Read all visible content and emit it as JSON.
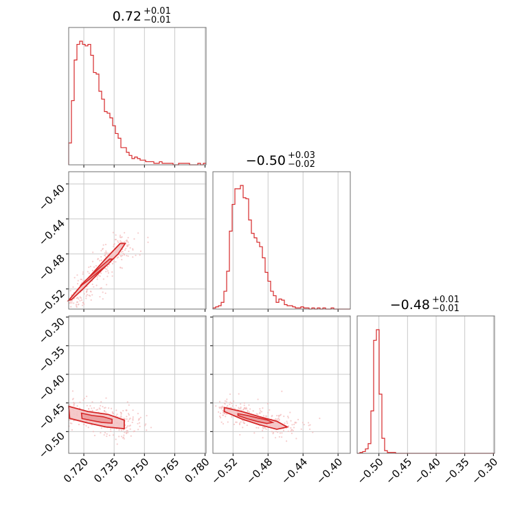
{
  "colors": {
    "accent": "#d62728",
    "fill": "#f4c3c4",
    "grid": "#c8c8c8",
    "frame": "#6e6e6e",
    "scatter": "#f2b8b8"
  },
  "titles": [
    {
      "main": "0.72",
      "sup": "+0.01",
      "sub": "−0.01"
    },
    {
      "main": "−0.50",
      "sup": "+0.03",
      "sub": "−0.02"
    },
    {
      "main": "−0.48",
      "sup": "+0.01",
      "sub": "−0.01"
    }
  ],
  "chart_data": {
    "type": "corner",
    "grid": true,
    "parameters": [
      {
        "median": 0.72,
        "err_plus": 0.01,
        "err_minus": 0.01,
        "range": [
          0.7125,
          0.7805
        ],
        "ticks": [
          0.72,
          0.735,
          0.75,
          0.765,
          0.78
        ],
        "tick_labels": [
          "0.720",
          "0.735",
          "0.750",
          "0.765",
          "0.780"
        ],
        "hist": {
          "edges_start": 0.7125,
          "bin_width": 0.00136,
          "counts": [
            14,
            41,
            67,
            77,
            79,
            77,
            76,
            77,
            70,
            59,
            58,
            47,
            42,
            34,
            33,
            30,
            25,
            20,
            17,
            11,
            11,
            8,
            6,
            4,
            5,
            4,
            3,
            3,
            2,
            2,
            2,
            1,
            1,
            2,
            1,
            1,
            1,
            1,
            0,
            0,
            1,
            1,
            1,
            1,
            0,
            0,
            0,
            1,
            0,
            1
          ]
        }
      },
      {
        "median": -0.5,
        "err_plus": 0.03,
        "err_minus": 0.02,
        "range": [
          -0.543,
          -0.386
        ],
        "ticks": [
          -0.52,
          -0.48,
          -0.44,
          -0.4
        ],
        "tick_labels": [
          "−0.52",
          "−0.48",
          "−0.44",
          "−0.40"
        ],
        "hist": {
          "edges_start": -0.543,
          "bin_width": 0.00314,
          "counts": [
            1,
            2,
            3,
            6,
            16,
            34,
            70,
            94,
            108,
            108,
            111,
            100,
            99,
            80,
            68,
            64,
            60,
            56,
            46,
            33,
            25,
            16,
            12,
            6,
            9,
            8,
            4,
            3,
            3,
            2,
            1,
            1,
            2,
            1,
            1,
            0,
            1,
            0,
            1,
            0,
            1,
            0,
            0,
            1,
            0,
            0,
            0,
            0,
            0,
            0
          ]
        }
      },
      {
        "median": -0.48,
        "err_plus": 0.01,
        "err_minus": 0.01,
        "range": [
          -0.538,
          -0.298
        ],
        "ticks": [
          -0.5,
          -0.45,
          -0.4,
          -0.35,
          -0.3
        ],
        "tick_labels": [
          "−0.50",
          "−0.45",
          "−0.40",
          "−0.35",
          "−0.30"
        ],
        "hist": {
          "edges_start": -0.538,
          "bin_width": 0.0048,
          "counts": [
            0,
            1,
            2,
            5,
            11,
            48,
            128,
            140,
            67,
            17,
            3,
            1,
            1,
            1,
            0,
            0,
            0,
            0,
            0,
            0,
            0,
            0,
            0,
            0,
            0,
            0,
            0,
            0,
            0,
            0,
            0,
            0,
            0,
            0,
            0,
            0,
            0,
            0,
            0,
            0,
            0,
            0,
            0,
            0,
            0,
            0,
            0,
            0,
            0,
            0
          ]
        }
      }
    ],
    "pairs": [
      {
        "x": 0,
        "y": 1,
        "relation": "positive correlation, concentrated at low x",
        "contour_path": [
          [
            0.7125,
            -0.533
          ],
          [
            0.718,
            -0.518
          ],
          [
            0.724,
            -0.503
          ],
          [
            0.731,
            -0.485
          ],
          [
            0.738,
            -0.468
          ],
          [
            0.7405,
            -0.468
          ],
          [
            0.737,
            -0.48
          ],
          [
            0.729,
            -0.498
          ],
          [
            0.72,
            -0.519
          ],
          [
            0.714,
            -0.532
          ]
        ]
      },
      {
        "x": 0,
        "y": 2,
        "relation": "negative correlation, concentrated at low x",
        "contour_path": [
          [
            0.7125,
            -0.456
          ],
          [
            0.722,
            -0.465
          ],
          [
            0.732,
            -0.47
          ],
          [
            0.74,
            -0.48
          ],
          [
            0.74,
            -0.495
          ],
          [
            0.731,
            -0.492
          ],
          [
            0.722,
            -0.485
          ],
          [
            0.713,
            -0.477
          ]
        ]
      },
      {
        "x": 1,
        "y": 2,
        "relation": "negative correlation",
        "contour_path": [
          [
            -0.53,
            -0.458
          ],
          [
            -0.51,
            -0.465
          ],
          [
            -0.49,
            -0.474
          ],
          [
            -0.47,
            -0.482
          ],
          [
            -0.458,
            -0.492
          ],
          [
            -0.47,
            -0.496
          ],
          [
            -0.49,
            -0.488
          ],
          [
            -0.51,
            -0.478
          ],
          [
            -0.53,
            -0.465
          ]
        ]
      }
    ]
  }
}
